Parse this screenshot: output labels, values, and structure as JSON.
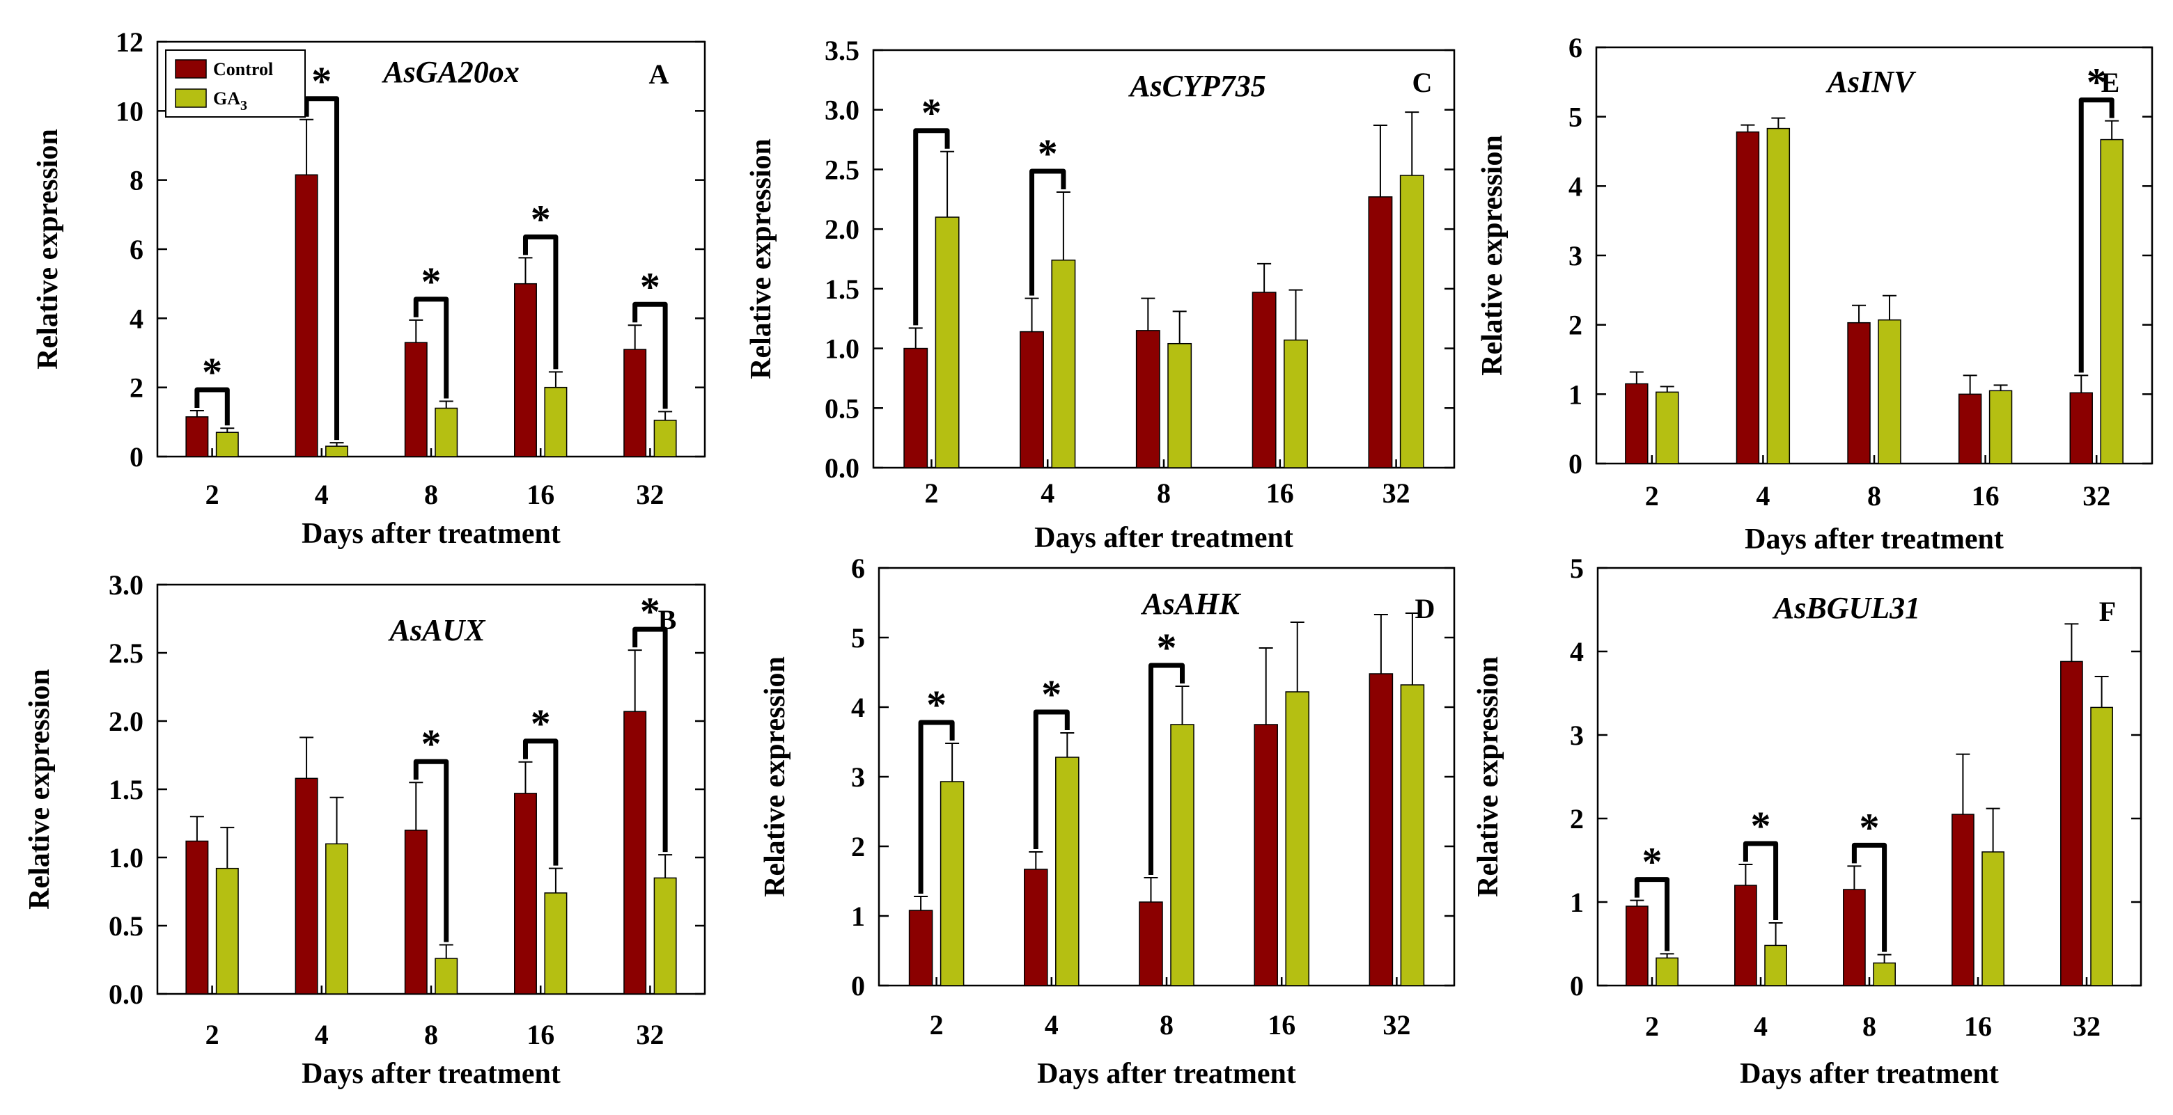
{
  "colors": {
    "control": "#8b0000",
    "ga3": "#b5bf12",
    "axis": "#000000"
  },
  "legend": {
    "control": "Control",
    "ga3_base": "GA",
    "ga3_sub": "3"
  },
  "chart_data": [
    {
      "id": "A",
      "type": "bar",
      "letter": "A",
      "title": "AsGA20ox",
      "xlabel": "Days after treatment",
      "ylabel": "Relative expression",
      "categories": [
        "2",
        "4",
        "8",
        "16",
        "32"
      ],
      "ylim": [
        0,
        12
      ],
      "yticks": [
        "0",
        "2",
        "4",
        "6",
        "8",
        "10",
        "12"
      ],
      "series": [
        {
          "name": "Control",
          "values": [
            1.15,
            8.15,
            3.3,
            5.0,
            3.1
          ],
          "errors": [
            0.18,
            1.6,
            0.65,
            0.75,
            0.7
          ]
        },
        {
          "name": "GA3",
          "values": [
            0.7,
            0.3,
            1.4,
            2.0,
            1.05
          ],
          "errors": [
            0.12,
            0.1,
            0.2,
            0.45,
            0.25
          ]
        }
      ],
      "significant": [
        true,
        true,
        true,
        true,
        true
      ],
      "legend": true
    },
    {
      "id": "B",
      "type": "bar",
      "letter": "B",
      "title": "AsAUX",
      "xlabel": "Days after treatment",
      "ylabel": "Relative expression",
      "categories": [
        "2",
        "4",
        "8",
        "16",
        "32"
      ],
      "ylim": [
        0,
        3.0
      ],
      "yticks": [
        "0.0",
        "0.5",
        "1.0",
        "1.5",
        "2.0",
        "2.5",
        "3.0"
      ],
      "series": [
        {
          "name": "Control",
          "values": [
            1.12,
            1.58,
            1.2,
            1.47,
            2.07
          ],
          "errors": [
            0.18,
            0.3,
            0.35,
            0.23,
            0.45
          ]
        },
        {
          "name": "GA3",
          "values": [
            0.92,
            1.1,
            0.26,
            0.74,
            0.85
          ],
          "errors": [
            0.3,
            0.34,
            0.1,
            0.18,
            0.17
          ]
        }
      ],
      "significant": [
        false,
        false,
        true,
        true,
        true
      ],
      "legend": false
    },
    {
      "id": "C",
      "type": "bar",
      "letter": "C",
      "title": "AsCYP735",
      "xlabel": "Days after treatment",
      "ylabel": "Relative expression",
      "categories": [
        "2",
        "4",
        "8",
        "16",
        "32"
      ],
      "ylim": [
        0,
        3.5
      ],
      "yticks": [
        "0.0",
        "0.5",
        "1.0",
        "1.5",
        "2.0",
        "2.5",
        "3.0",
        "3.5"
      ],
      "series": [
        {
          "name": "Control",
          "values": [
            1.0,
            1.14,
            1.15,
            1.47,
            2.27
          ],
          "errors": [
            0.17,
            0.28,
            0.27,
            0.24,
            0.6
          ]
        },
        {
          "name": "GA3",
          "values": [
            2.1,
            1.74,
            1.04,
            1.07,
            2.45
          ],
          "errors": [
            0.55,
            0.57,
            0.27,
            0.42,
            0.53
          ]
        }
      ],
      "significant": [
        true,
        true,
        false,
        false,
        false
      ],
      "legend": false
    },
    {
      "id": "D",
      "type": "bar",
      "letter": "D",
      "title": "AsAHK",
      "xlabel": "Days after treatment",
      "ylabel": "Relative expression",
      "categories": [
        "2",
        "4",
        "8",
        "16",
        "32"
      ],
      "ylim": [
        0,
        6
      ],
      "yticks": [
        "0",
        "1",
        "2",
        "3",
        "4",
        "5",
        "6"
      ],
      "series": [
        {
          "name": "Control",
          "values": [
            1.08,
            1.67,
            1.2,
            3.75,
            4.48
          ],
          "errors": [
            0.2,
            0.25,
            0.35,
            1.1,
            0.85
          ]
        },
        {
          "name": "GA3",
          "values": [
            2.93,
            3.28,
            3.75,
            4.22,
            4.32
          ],
          "errors": [
            0.55,
            0.35,
            0.55,
            1.0,
            1.03
          ]
        }
      ],
      "significant": [
        true,
        true,
        true,
        false,
        false
      ],
      "legend": false
    },
    {
      "id": "E",
      "type": "bar",
      "letter": "E",
      "title": "AsINV",
      "xlabel": "Days after treatment",
      "ylabel": "Relative expression",
      "categories": [
        "2",
        "4",
        "8",
        "16",
        "32"
      ],
      "ylim": [
        0,
        6
      ],
      "yticks": [
        "0",
        "1",
        "2",
        "3",
        "4",
        "5",
        "6"
      ],
      "series": [
        {
          "name": "Control",
          "values": [
            1.15,
            4.78,
            2.03,
            1.0,
            1.02
          ],
          "errors": [
            0.17,
            0.1,
            0.25,
            0.27,
            0.25
          ]
        },
        {
          "name": "GA3",
          "values": [
            1.03,
            4.83,
            2.07,
            1.05,
            4.67
          ],
          "errors": [
            0.08,
            0.15,
            0.35,
            0.08,
            0.27
          ]
        }
      ],
      "significant": [
        false,
        false,
        false,
        false,
        true
      ],
      "legend": false
    },
    {
      "id": "F",
      "type": "bar",
      "letter": "F",
      "title": "AsBGUL31",
      "xlabel": "Days after treatment",
      "ylabel": "Relative expression",
      "categories": [
        "2",
        "4",
        "8",
        "16",
        "32"
      ],
      "ylim": [
        0,
        5
      ],
      "yticks": [
        "0",
        "1",
        "2",
        "3",
        "4",
        "5"
      ],
      "series": [
        {
          "name": "Control",
          "values": [
            0.95,
            1.2,
            1.15,
            2.05,
            3.88
          ],
          "errors": [
            0.07,
            0.25,
            0.28,
            0.72,
            0.45
          ]
        },
        {
          "name": "GA3",
          "values": [
            0.33,
            0.48,
            0.27,
            1.6,
            3.33
          ],
          "errors": [
            0.05,
            0.27,
            0.1,
            0.52,
            0.37
          ]
        }
      ],
      "significant": [
        true,
        true,
        true,
        false,
        false
      ],
      "legend": false
    }
  ]
}
